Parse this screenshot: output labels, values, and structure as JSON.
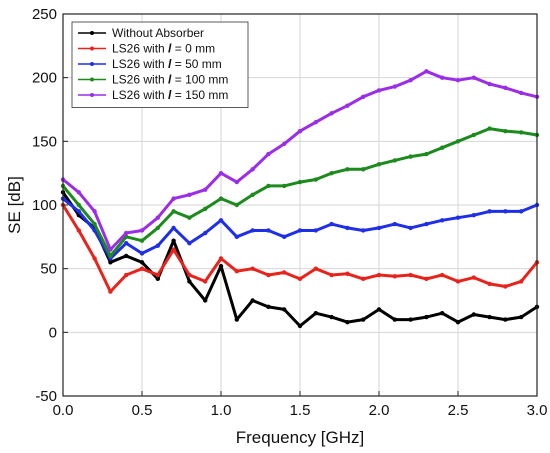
{
  "chart_data": {
    "type": "line",
    "xlabel": "Frequency [GHz]",
    "ylabel": "SE [dB]",
    "xlim": [
      0.0,
      3.0
    ],
    "ylim": [
      -50,
      250
    ],
    "xticks": [
      0.0,
      0.5,
      1.0,
      1.5,
      2.0,
      2.5,
      3.0
    ],
    "xtick_labels": [
      "0.0",
      "0.5",
      "1.0",
      "1.5",
      "2.0",
      "2.5",
      "3.0"
    ],
    "yticks": [
      -50,
      0,
      50,
      100,
      150,
      200,
      250
    ],
    "ytick_labels": [
      "-50",
      "0",
      "50",
      "100",
      "150",
      "200",
      "250"
    ],
    "grid": true,
    "legend_position": "top-left",
    "series": [
      {
        "name": "Without Absorber",
        "legend_prefix": "Without Absorber",
        "legend_italic": "",
        "legend_suffix": "",
        "color": "#000000",
        "x": [
          0.0,
          0.1,
          0.2,
          0.3,
          0.4,
          0.5,
          0.6,
          0.7,
          0.8,
          0.9,
          1.0,
          1.1,
          1.2,
          1.3,
          1.4,
          1.5,
          1.6,
          1.7,
          1.8,
          1.9,
          2.0,
          2.1,
          2.2,
          2.3,
          2.4,
          2.5,
          2.6,
          2.7,
          2.8,
          2.9,
          3.0
        ],
        "y": [
          110,
          92,
          82,
          55,
          60,
          55,
          42,
          72,
          40,
          25,
          52,
          10,
          25,
          20,
          18,
          5,
          15,
          12,
          8,
          10,
          18,
          10,
          10,
          12,
          15,
          8,
          14,
          12,
          10,
          12,
          20
        ]
      },
      {
        "name": "LS26 with l = 0 mm",
        "legend_prefix": "LS26 with ",
        "legend_italic": "l",
        "legend_suffix": " = 0 mm",
        "color": "#e8231b",
        "x": [
          0.0,
          0.1,
          0.2,
          0.3,
          0.4,
          0.5,
          0.6,
          0.7,
          0.8,
          0.9,
          1.0,
          1.1,
          1.2,
          1.3,
          1.4,
          1.5,
          1.6,
          1.7,
          1.8,
          1.9,
          2.0,
          2.1,
          2.2,
          2.3,
          2.4,
          2.5,
          2.6,
          2.7,
          2.8,
          2.9,
          3.0
        ],
        "y": [
          100,
          80,
          58,
          32,
          45,
          50,
          45,
          65,
          45,
          40,
          58,
          48,
          50,
          45,
          47,
          42,
          50,
          45,
          46,
          42,
          45,
          44,
          45,
          42,
          45,
          40,
          43,
          38,
          36,
          40,
          55
        ]
      },
      {
        "name": "LS26 with l = 50 mm",
        "legend_prefix": "LS26 with ",
        "legend_italic": "l",
        "legend_suffix": " = 50 mm",
        "color": "#1f2ee8",
        "x": [
          0.0,
          0.1,
          0.2,
          0.3,
          0.4,
          0.5,
          0.6,
          0.7,
          0.8,
          0.9,
          1.0,
          1.1,
          1.2,
          1.3,
          1.4,
          1.5,
          1.6,
          1.7,
          1.8,
          1.9,
          2.0,
          2.1,
          2.2,
          2.3,
          2.4,
          2.5,
          2.6,
          2.7,
          2.8,
          2.9,
          3.0
        ],
        "y": [
          105,
          95,
          80,
          58,
          70,
          62,
          68,
          82,
          70,
          78,
          88,
          75,
          80,
          80,
          75,
          80,
          80,
          85,
          82,
          80,
          82,
          85,
          82,
          85,
          88,
          90,
          92,
          95,
          95,
          95,
          100
        ]
      },
      {
        "name": "LS26 with l = 100 mm",
        "legend_prefix": "LS26 with ",
        "legend_italic": "l",
        "legend_suffix": " = 100 mm",
        "color": "#1d8a1d",
        "x": [
          0.0,
          0.1,
          0.2,
          0.3,
          0.4,
          0.5,
          0.6,
          0.7,
          0.8,
          0.9,
          1.0,
          1.1,
          1.2,
          1.3,
          1.4,
          1.5,
          1.6,
          1.7,
          1.8,
          1.9,
          2.0,
          2.1,
          2.2,
          2.3,
          2.4,
          2.5,
          2.6,
          2.7,
          2.8,
          2.9,
          3.0
        ],
        "y": [
          115,
          100,
          85,
          60,
          75,
          72,
          82,
          95,
          90,
          97,
          105,
          100,
          108,
          115,
          115,
          118,
          120,
          125,
          128,
          128,
          132,
          135,
          138,
          140,
          145,
          150,
          155,
          160,
          158,
          157,
          155
        ]
      },
      {
        "name": "LS26 with l = 150 mm",
        "legend_prefix": "LS26 with ",
        "legend_italic": "l",
        "legend_suffix": " = 150 mm",
        "color": "#9b2ce8",
        "x": [
          0.0,
          0.1,
          0.2,
          0.3,
          0.4,
          0.5,
          0.6,
          0.7,
          0.8,
          0.9,
          1.0,
          1.1,
          1.2,
          1.3,
          1.4,
          1.5,
          1.6,
          1.7,
          1.8,
          1.9,
          2.0,
          2.1,
          2.2,
          2.3,
          2.4,
          2.5,
          2.6,
          2.7,
          2.8,
          2.9,
          3.0
        ],
        "y": [
          120,
          110,
          95,
          65,
          78,
          80,
          90,
          105,
          108,
          112,
          125,
          118,
          128,
          140,
          148,
          158,
          165,
          172,
          178,
          185,
          190,
          193,
          198,
          205,
          200,
          198,
          200,
          195,
          192,
          188,
          185
        ]
      }
    ]
  }
}
